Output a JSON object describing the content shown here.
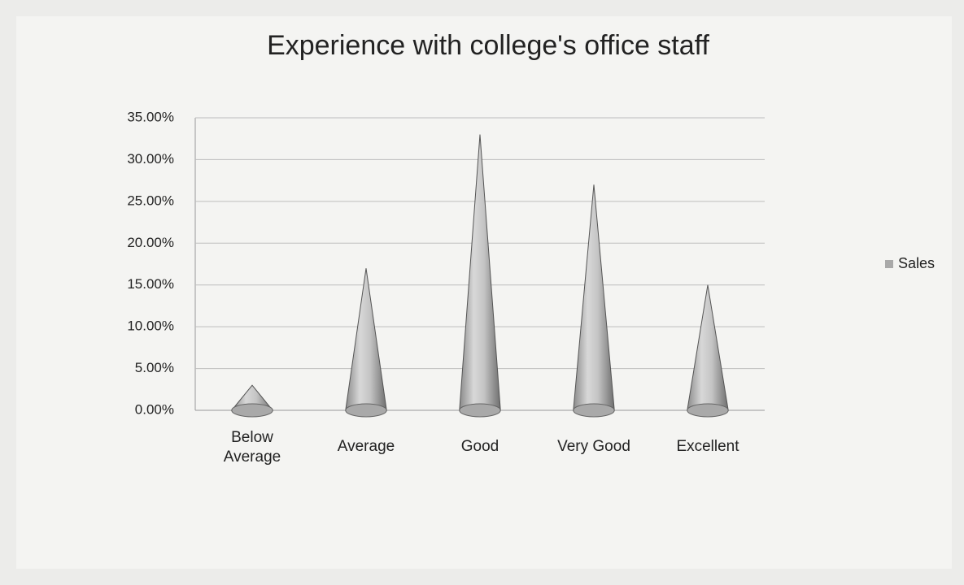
{
  "chart_data": {
    "type": "cone",
    "title": "Experience with college's office staff",
    "categories": [
      [
        "Below",
        "Average"
      ],
      [
        "Average"
      ],
      [
        "Good"
      ],
      [
        "Very Good"
      ],
      [
        "Excellent"
      ]
    ],
    "series": [
      {
        "name": "Sales",
        "color": "#a9a9a9",
        "values": [
          3,
          17,
          33,
          27,
          15
        ]
      }
    ],
    "ylim": [
      0,
      35
    ],
    "yticks": [
      {
        "value": 0,
        "label": "0.00%"
      },
      {
        "value": 5,
        "label": "5.00%"
      },
      {
        "value": 10,
        "label": "10.00%"
      },
      {
        "value": 15,
        "label": "15.00%"
      },
      {
        "value": 20,
        "label": "20.00%"
      },
      {
        "value": 25,
        "label": "25.00%"
      },
      {
        "value": 30,
        "label": "30.00%"
      },
      {
        "value": 35,
        "label": "35.00%"
      }
    ],
    "grid": true,
    "legend": "right"
  }
}
